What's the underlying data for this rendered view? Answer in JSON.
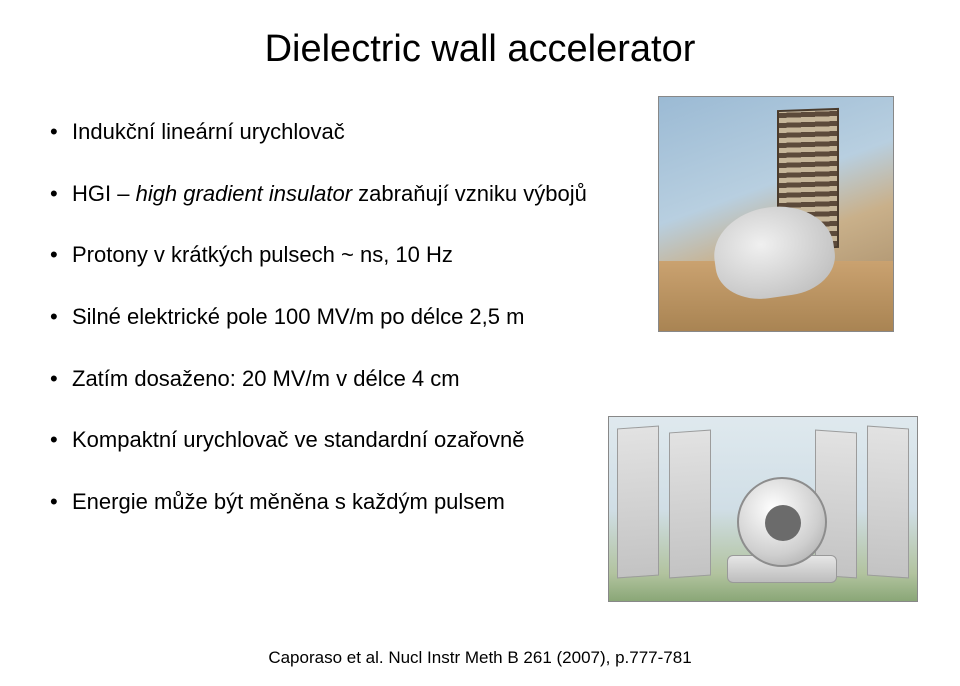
{
  "title": "Dielectric wall accelerator",
  "bullets": [
    {
      "pre": "Indukční lineární urychlovač",
      "italic": "",
      "post": ""
    },
    {
      "pre": "HGI – ",
      "italic": "high gradient insulator",
      "post": " zabraňují vzniku výbojů"
    },
    {
      "pre": "Protony v krátkých pulsech ~ ns, 10 Hz",
      "italic": "",
      "post": ""
    },
    {
      "pre": "Silné elektrické pole 100 MV/m po délce 2,5 m",
      "italic": "",
      "post": ""
    },
    {
      "pre": "Zatím dosaženo: 20 MV/m v délce 4 cm",
      "italic": "",
      "post": ""
    },
    {
      "pre": "Kompaktní urychlovač ve standardní ozařovně",
      "italic": "",
      "post": ""
    },
    {
      "pre": "Energie může být měněna s každým pulsem",
      "italic": "",
      "post": ""
    }
  ],
  "citation": "Caporaso et al. Nucl Instr Meth B 261 (2007), p.777-781",
  "images": {
    "top_alt": "dwa-device-render",
    "bottom_alt": "dwa-treatment-room-render"
  }
}
